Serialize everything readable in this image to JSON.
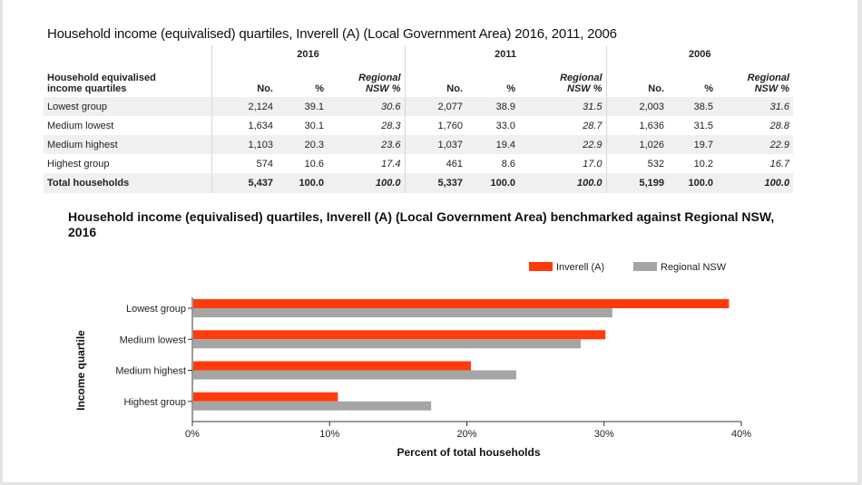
{
  "table": {
    "title": "Household income (equivalised) quartiles, Inverell (A) (Local Government Area) 2016, 2011, 2006",
    "years": [
      "2016",
      "2011",
      "2006"
    ],
    "row_label_header_line1": "Household equivalised",
    "row_label_header_line2": "income quartiles",
    "col_no": "No.",
    "col_pct": "%",
    "col_reg_line1": "Regional",
    "col_reg_line2": "NSW %",
    "rows": [
      {
        "label": "Lowest group",
        "cells": [
          "2,124",
          "39.1",
          "30.6",
          "2,077",
          "38.9",
          "31.5",
          "2,003",
          "38.5",
          "31.6"
        ]
      },
      {
        "label": "Medium lowest",
        "cells": [
          "1,634",
          "30.1",
          "28.3",
          "1,760",
          "33.0",
          "28.7",
          "1,636",
          "31.5",
          "28.8"
        ]
      },
      {
        "label": "Medium highest",
        "cells": [
          "1,103",
          "20.3",
          "23.6",
          "1,037",
          "19.4",
          "22.9",
          "1,026",
          "19.7",
          "22.9"
        ]
      },
      {
        "label": "Highest group",
        "cells": [
          "574",
          "10.6",
          "17.4",
          "461",
          "8.6",
          "17.0",
          "532",
          "10.2",
          "16.7"
        ]
      },
      {
        "label": "Total households",
        "cells": [
          "5,437",
          "100.0",
          "100.0",
          "5,337",
          "100.0",
          "100.0",
          "5,199",
          "100.0",
          "100.0"
        ]
      }
    ]
  },
  "chart_data": {
    "type": "bar",
    "orientation": "horizontal",
    "title": "Household income (equivalised) quartiles, Inverell (A) (Local Government Area) benchmarked against Regional NSW, 2016",
    "categories": [
      "Lowest group",
      "Medium lowest",
      "Medium highest",
      "Highest group"
    ],
    "series": [
      {
        "name": "Inverell (A)",
        "color": "#ff3b0a",
        "values": [
          39.1,
          30.1,
          20.3,
          10.6
        ]
      },
      {
        "name": "Regional NSW",
        "color": "#a5a5a5",
        "values": [
          30.6,
          28.3,
          23.6,
          17.4
        ]
      }
    ],
    "xlabel": "Percent of total households",
    "ylabel": "Income quartile",
    "xlim": [
      0,
      40
    ],
    "xticks": [
      0,
      10,
      20,
      30,
      40
    ],
    "xtick_labels": [
      "0%",
      "10%",
      "20%",
      "30%",
      "40%"
    ],
    "legend_position": "top-right",
    "grid": false
  }
}
